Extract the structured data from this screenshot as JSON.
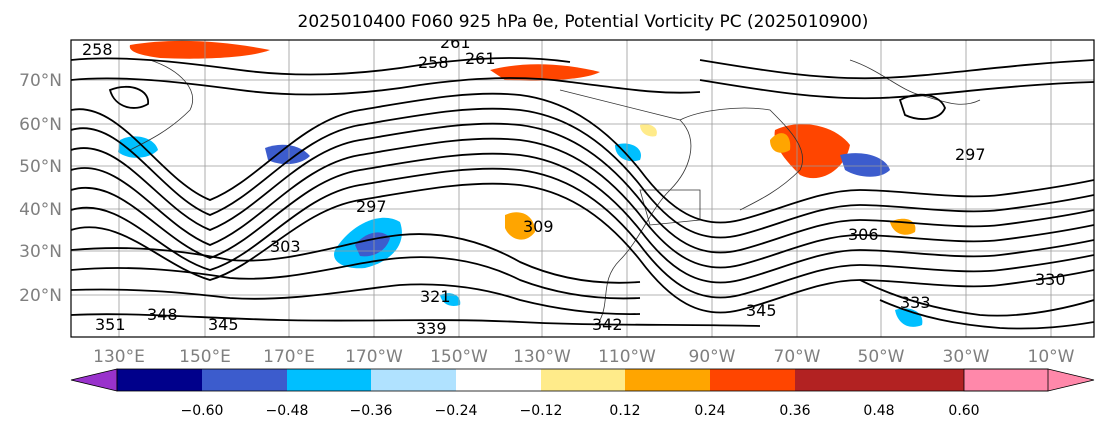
{
  "title": "2025010400 F060 925 hPa θe, Potential Vorticity PC (2025010900)",
  "map": {
    "lat_ticks": [
      "70°N",
      "60°N",
      "50°N",
      "40°N",
      "30°N",
      "20°N"
    ],
    "lon_ticks": [
      "130°E",
      "150°E",
      "170°E",
      "170°W",
      "150°W",
      "130°W",
      "110°W",
      "90°W",
      "70°W",
      "50°W",
      "30°W",
      "10°W"
    ],
    "contour_labels": [
      "258",
      "258",
      "261",
      "261",
      "297",
      "303",
      "306",
      "309",
      "321",
      "339",
      "342",
      "345",
      "348",
      "351",
      "345",
      "333",
      "330",
      "297"
    ]
  },
  "colorbar": {
    "ticks": [
      "−0.60",
      "−0.48",
      "−0.36",
      "−0.24",
      "−0.12",
      "0.12",
      "0.24",
      "0.36",
      "0.48",
      "0.60"
    ],
    "colors": [
      "#9932cc",
      "#00008b",
      "#3c5ccd",
      "#00bfff",
      "#b0e2ff",
      "#ffffff",
      "#ffeb8a",
      "#ffa500",
      "#ff4500",
      "#b22222",
      "#ff88aa"
    ]
  }
}
